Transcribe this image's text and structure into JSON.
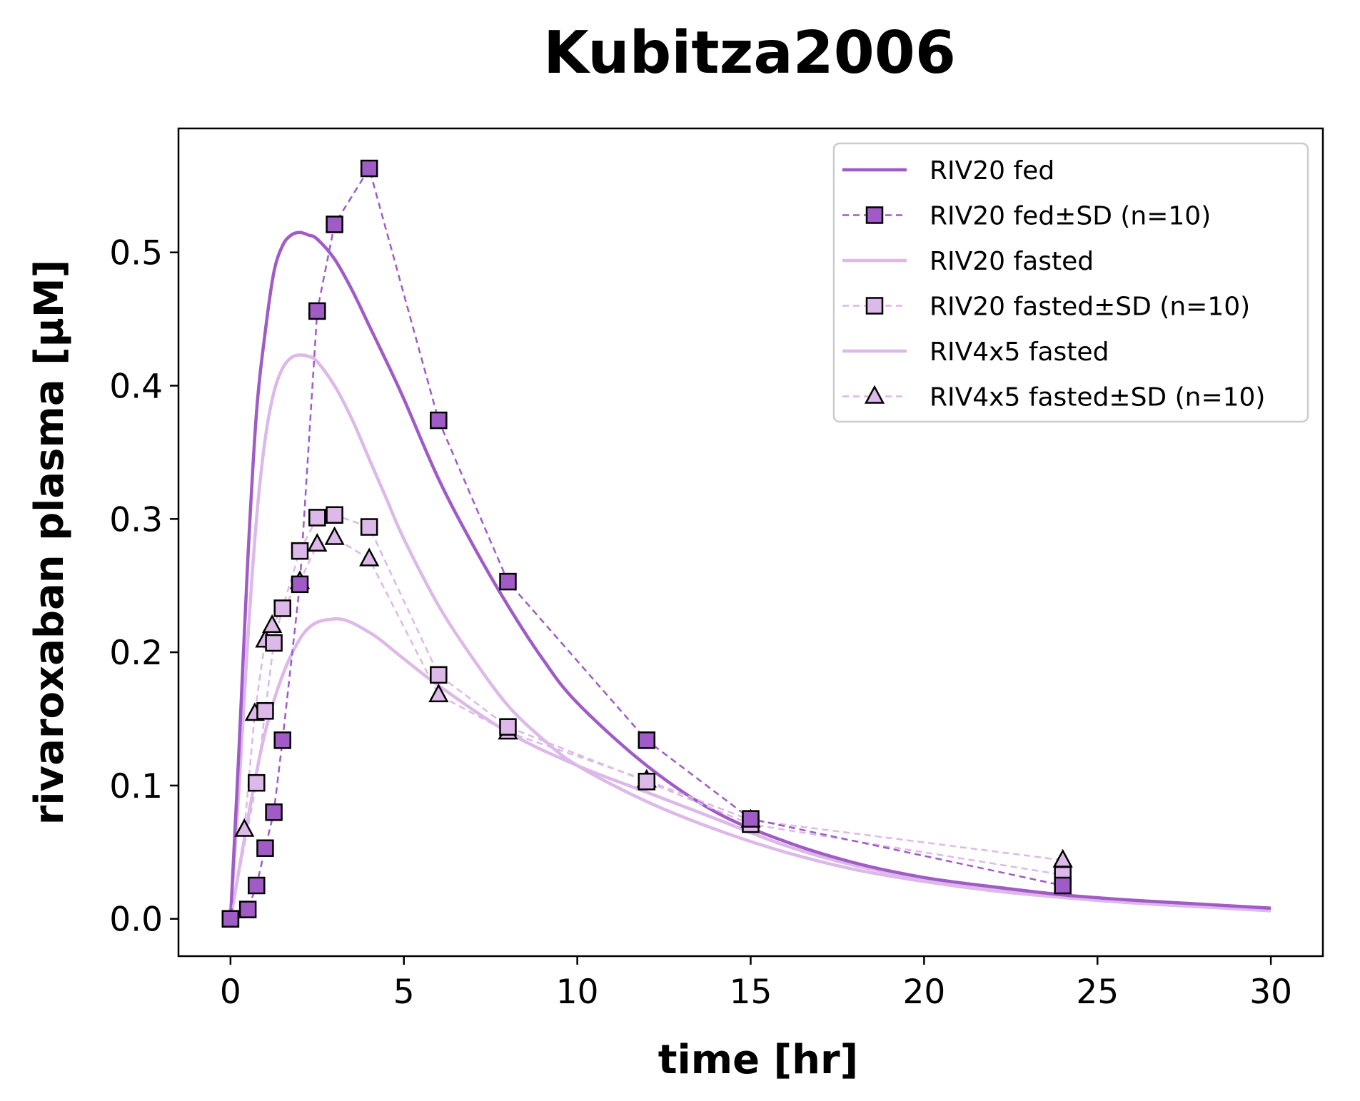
{
  "chart_data": {
    "type": "line",
    "title": "Kubitza2006",
    "xlabel": "time [hr]",
    "ylabel": "rivaroxaban plasma [µM]",
    "xlim": [
      -1.5,
      31.5
    ],
    "ylim": [
      -0.028,
      0.593
    ],
    "xticks": [
      0,
      5,
      10,
      15,
      20,
      25,
      30
    ],
    "xtick_labels": [
      "0",
      "5",
      "10",
      "15",
      "20",
      "25",
      "30"
    ],
    "yticks": [
      0.0,
      0.1,
      0.2,
      0.3,
      0.4,
      0.5
    ],
    "ytick_labels": [
      "0.0",
      "0.1",
      "0.2",
      "0.3",
      "0.4",
      "0.5"
    ],
    "grid": false,
    "legend_position": "top-right",
    "colors": {
      "fed": "#a05bc6",
      "fasted": "#dcb9e8",
      "marker_edge": "#000000"
    },
    "legend": [
      {
        "label": "RIV20 fed",
        "style": "line",
        "color": "#a05bc6"
      },
      {
        "label": "RIV20 fed±SD (n=10)",
        "style": "dashed-square",
        "color": "#a05bc6"
      },
      {
        "label": "RIV20 fasted",
        "style": "line",
        "color": "#dcb9e8"
      },
      {
        "label": "RIV20 fasted±SD (n=10)",
        "style": "dashed-square",
        "color": "#dcb9e8"
      },
      {
        "label": "RIV4x5 fasted",
        "style": "line",
        "color": "#dcb9e8"
      },
      {
        "label": "RIV4x5 fasted±SD (n=10)",
        "style": "dashed-triangle",
        "color": "#dcb9e8"
      }
    ],
    "model_series": [
      {
        "name": "RIV20 fed",
        "color": "#a05bc6",
        "width": 4.5,
        "x": [
          0,
          0.25,
          0.5,
          0.75,
          1,
          1.25,
          1.5,
          1.75,
          2,
          2.25,
          2.5,
          3,
          3.5,
          4,
          4.5,
          5,
          6,
          7,
          8,
          9,
          10,
          12,
          14,
          16,
          18,
          20,
          22,
          24,
          26,
          28,
          30
        ],
        "y": [
          0,
          0.13,
          0.27,
          0.38,
          0.44,
          0.485,
          0.505,
          0.513,
          0.515,
          0.513,
          0.51,
          0.495,
          0.472,
          0.445,
          0.418,
          0.39,
          0.33,
          0.28,
          0.235,
          0.195,
          0.162,
          0.115,
          0.08,
          0.058,
          0.042,
          0.031,
          0.024,
          0.018,
          0.014,
          0.011,
          0.008
        ]
      },
      {
        "name": "RIV20 fasted",
        "color": "#dcb9e8",
        "width": 4.5,
        "x": [
          0,
          0.25,
          0.5,
          0.75,
          1,
          1.25,
          1.5,
          1.75,
          2,
          2.25,
          2.5,
          3,
          3.5,
          4,
          4.5,
          5,
          6,
          7,
          8,
          9,
          10,
          12,
          14,
          16,
          18,
          20,
          22,
          24,
          26,
          28,
          30
        ],
        "y": [
          0,
          0.1,
          0.21,
          0.3,
          0.36,
          0.395,
          0.413,
          0.421,
          0.423,
          0.422,
          0.418,
          0.4,
          0.375,
          0.345,
          0.315,
          0.285,
          0.235,
          0.195,
          0.16,
          0.135,
          0.115,
          0.088,
          0.067,
          0.05,
          0.037,
          0.028,
          0.021,
          0.016,
          0.012,
          0.009,
          0.007
        ]
      },
      {
        "name": "RIV4x5 fasted",
        "color": "#dcb9e8",
        "width": 4.5,
        "x": [
          0,
          1,
          2,
          3,
          4,
          5,
          6,
          8,
          10,
          12,
          14,
          16,
          18,
          20,
          22,
          24,
          26,
          28,
          30
        ],
        "y": [
          0,
          0.14,
          0.21,
          0.225,
          0.215,
          0.195,
          0.175,
          0.14,
          0.115,
          0.095,
          0.075,
          0.055,
          0.04,
          0.03,
          0.022,
          0.016,
          0.012,
          0.009,
          0.006
        ]
      }
    ],
    "data_series": [
      {
        "name": "RIV20 fed±SD (n=10)",
        "marker": "square",
        "color": "#a05bc6",
        "x": [
          0,
          0.5,
          0.75,
          1,
          1.25,
          1.5,
          2,
          2.5,
          3,
          4,
          6,
          8,
          12,
          15,
          24
        ],
        "y": [
          0,
          0.007,
          0.025,
          0.053,
          0.08,
          0.134,
          0.251,
          0.456,
          0.521,
          0.563,
          0.374,
          0.253,
          0.134,
          0.075,
          0.025
        ]
      },
      {
        "name": "RIV20 fasted±SD (n=10)",
        "marker": "square",
        "color": "#dcb9e8",
        "x": [
          0,
          0.75,
          1,
          1.25,
          1.5,
          2,
          2.5,
          3,
          4,
          6,
          8,
          12,
          15,
          24
        ],
        "y": [
          0,
          0.102,
          0.156,
          0.207,
          0.233,
          0.276,
          0.301,
          0.303,
          0.294,
          0.183,
          0.144,
          0.103,
          0.071,
          0.033
        ]
      },
      {
        "name": "RIV4x5 fasted±SD (n=10)",
        "marker": "triangle",
        "color": "#dcb9e8",
        "x": [
          0.4,
          0.7,
          1,
          1.2,
          2,
          2.5,
          3,
          4,
          6,
          8,
          12,
          15,
          24
        ],
        "y": [
          0.067,
          0.154,
          0.209,
          0.22,
          0.253,
          0.281,
          0.286,
          0.27,
          0.168,
          0.14,
          0.104,
          0.074,
          0.044
        ]
      }
    ]
  }
}
